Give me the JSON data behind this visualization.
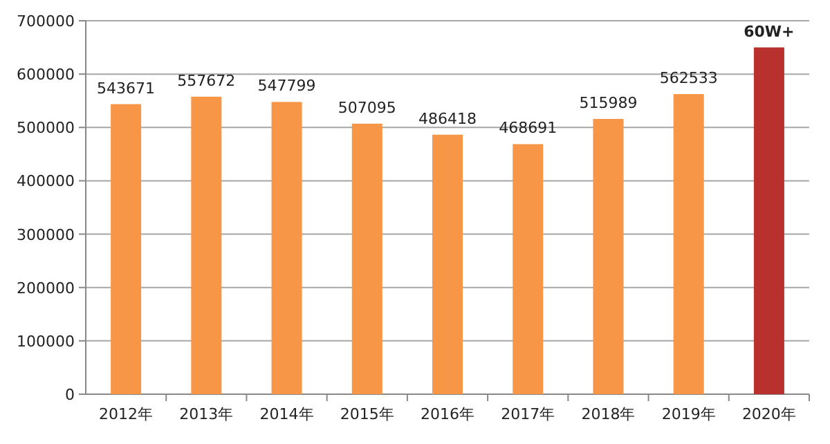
{
  "chart_data": {
    "type": "bar",
    "categories": [
      "2012年",
      "2013年",
      "2014年",
      "2015年",
      "2016年",
      "2017年",
      "2018年",
      "2019年",
      "2020年"
    ],
    "values": [
      543671,
      557672,
      547799,
      507095,
      486418,
      468691,
      515989,
      562533,
      650000
    ],
    "value_labels": [
      "543671",
      "557672",
      "547799",
      "507095",
      "486418",
      "468691",
      "515989",
      "562533",
      null
    ],
    "annotations": [
      {
        "text": "60W+",
        "x": "2020年",
        "y": 650000
      }
    ],
    "colors": [
      "#f79646",
      "#f79646",
      "#f79646",
      "#f79646",
      "#f79646",
      "#f79646",
      "#f79646",
      "#f79646",
      "#b8312f"
    ],
    "ylim": [
      0,
      700000
    ],
    "yticks": [
      0,
      100000,
      200000,
      300000,
      400000,
      500000,
      600000,
      700000
    ],
    "grid": "y"
  }
}
